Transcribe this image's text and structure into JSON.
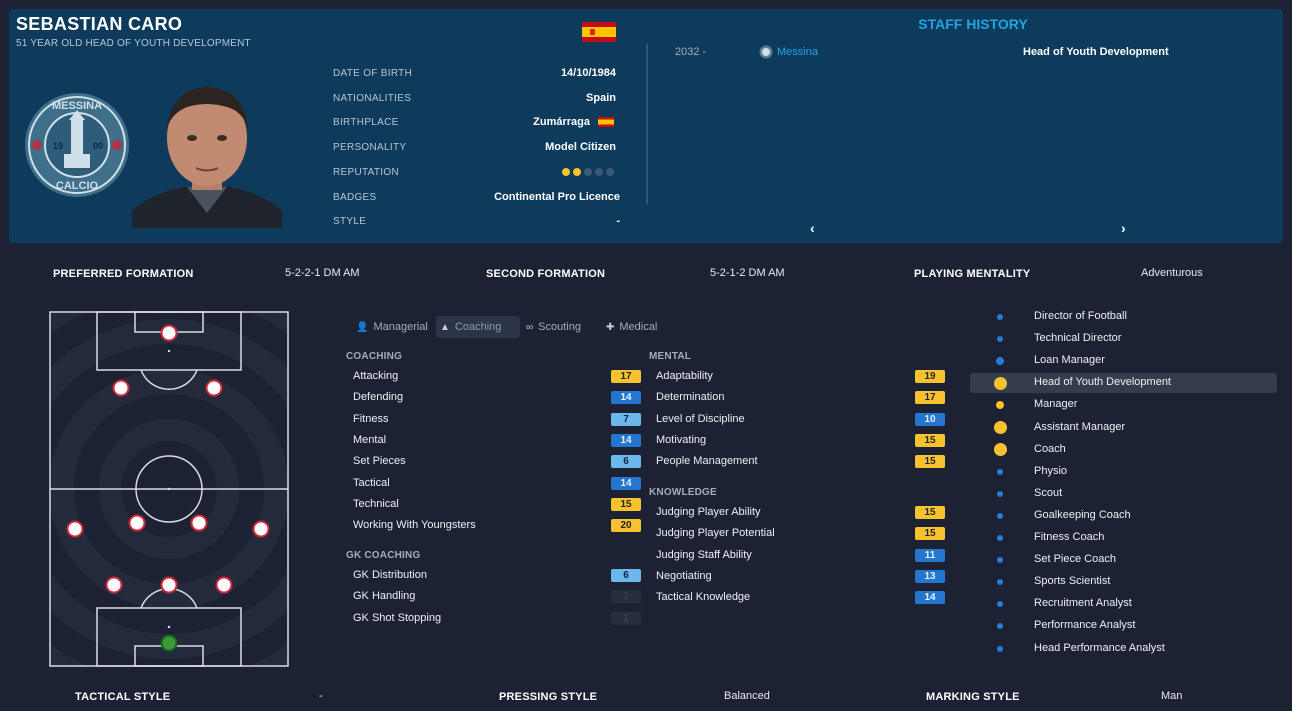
{
  "staff": {
    "name": "SEBASTIAN CARO",
    "subtitle": "51 YEAR OLD HEAD OF YOUTH DEVELOPMENT",
    "details": [
      {
        "label": "DATE OF BIRTH",
        "value": "14/10/1984"
      },
      {
        "label": "NATIONALITIES",
        "value": "Spain"
      },
      {
        "label": "BIRTHPLACE",
        "value": "Zumárraga"
      },
      {
        "label": "PERSONALITY",
        "value": "Model Citizen"
      },
      {
        "label": "REPUTATION",
        "value": ""
      },
      {
        "label": "BADGES",
        "value": "Continental Pro Licence"
      },
      {
        "label": "STYLE",
        "value": "-"
      }
    ],
    "reputation_stars": 2,
    "reputation_max": 5
  },
  "club_badge": {
    "text_top": "MESSINA",
    "text_bottom": "CALCIO",
    "year_left": "19",
    "year_right": "00"
  },
  "staff_history": {
    "title": "STAFF HISTORY",
    "rows": [
      {
        "year": "2032 -",
        "club": "Messina",
        "role": "Head of Youth Development"
      }
    ],
    "prev_icon": "chevron-left-icon",
    "next_icon": "chevron-right-icon",
    "prev_label": "‹",
    "next_label": "›"
  },
  "formations": {
    "preferred_label": "PREFERRED FORMATION",
    "preferred_value": "5-2-2-1 DM AM",
    "second_label": "SECOND FORMATION",
    "second_value": "5-2-1-2 DM AM",
    "mentality_label": "PLAYING MENTALITY",
    "mentality_value": "Adventurous"
  },
  "tabs": [
    {
      "label": "Managerial",
      "icon": "person-icon",
      "active": false
    },
    {
      "label": "Coaching",
      "icon": "coach-icon",
      "active": true
    },
    {
      "label": "Scouting",
      "icon": "binoculars-icon",
      "active": false
    },
    {
      "label": "Medical",
      "icon": "medical-kit-icon",
      "active": false
    }
  ],
  "attributes": {
    "coaching": {
      "title": "COACHING",
      "items": [
        {
          "name": "Attacking",
          "value": "17",
          "tone": "y"
        },
        {
          "name": "Defending",
          "value": "14",
          "tone": "b"
        },
        {
          "name": "Fitness",
          "value": "7",
          "tone": "lb"
        },
        {
          "name": "Mental",
          "value": "14",
          "tone": "b"
        },
        {
          "name": "Set Pieces",
          "value": "6",
          "tone": "lb"
        },
        {
          "name": "Tactical",
          "value": "14",
          "tone": "b"
        },
        {
          "name": "Technical",
          "value": "15",
          "tone": "y"
        },
        {
          "name": "Working With Youngsters",
          "value": "20",
          "tone": "y"
        }
      ]
    },
    "gk_coaching": {
      "title": "GK COACHING",
      "items": [
        {
          "name": "GK Distribution",
          "value": "6",
          "tone": "lb"
        },
        {
          "name": "GK Handling",
          "value": "1",
          "tone": "g"
        },
        {
          "name": "GK Shot Stopping",
          "value": "1",
          "tone": "g"
        }
      ]
    },
    "mental": {
      "title": "MENTAL",
      "items": [
        {
          "name": "Adaptability",
          "value": "19",
          "tone": "y"
        },
        {
          "name": "Determination",
          "value": "17",
          "tone": "y"
        },
        {
          "name": "Level of Discipline",
          "value": "10",
          "tone": "b"
        },
        {
          "name": "Motivating",
          "value": "15",
          "tone": "y"
        },
        {
          "name": "People Management",
          "value": "15",
          "tone": "y"
        }
      ]
    },
    "knowledge": {
      "title": "KNOWLEDGE",
      "items": [
        {
          "name": "Judging Player Ability",
          "value": "15",
          "tone": "y"
        },
        {
          "name": "Judging Player Potential",
          "value": "15",
          "tone": "y"
        },
        {
          "name": "Judging Staff Ability",
          "value": "11",
          "tone": "b"
        },
        {
          "name": "Negotiating",
          "value": "13",
          "tone": "b"
        },
        {
          "name": "Tactical Knowledge",
          "value": "14",
          "tone": "b"
        }
      ]
    }
  },
  "roles": [
    {
      "name": "Director of Football",
      "size": "s",
      "color": "#2a7bd6"
    },
    {
      "name": "Technical Director",
      "size": "s",
      "color": "#2a7bd6"
    },
    {
      "name": "Loan Manager",
      "size": "m",
      "color": "#2a7bd6"
    },
    {
      "name": "Head of Youth Development",
      "size": "l",
      "color": "#f6c22f",
      "highlight": true
    },
    {
      "name": "Manager",
      "size": "m",
      "color": "#f6c22f"
    },
    {
      "name": "Assistant Manager",
      "size": "l",
      "color": "#f6c22f"
    },
    {
      "name": "Coach",
      "size": "l",
      "color": "#f6c22f"
    },
    {
      "name": "Physio",
      "size": "s",
      "color": "#2a7bd6"
    },
    {
      "name": "Scout",
      "size": "s",
      "color": "#2a7bd6"
    },
    {
      "name": "Goalkeeping Coach",
      "size": "s",
      "color": "#2a7bd6"
    },
    {
      "name": "Fitness Coach",
      "size": "s",
      "color": "#2a7bd6"
    },
    {
      "name": "Set Piece Coach",
      "size": "s",
      "color": "#2a7bd6"
    },
    {
      "name": "Sports Scientist",
      "size": "s",
      "color": "#2a7bd6"
    },
    {
      "name": "Recruitment Analyst",
      "size": "s",
      "color": "#2a7bd6"
    },
    {
      "name": "Performance Analyst",
      "size": "s",
      "color": "#2a7bd6"
    },
    {
      "name": "Head Performance Analyst",
      "size": "s",
      "color": "#2a7bd6"
    }
  ],
  "styles": {
    "tactical_label": "TACTICAL STYLE",
    "tactical_value": "-",
    "pressing_label": "PRESSING STYLE",
    "pressing_value": "Balanced",
    "marking_label": "MARKING STYLE",
    "marking_value": "Man"
  },
  "colors": {
    "header_bg": "#0e3a5c",
    "page_bg": "#1c2233",
    "accent": "#1fa6e6",
    "gold": "#f6c22f",
    "blue": "#2476cf"
  }
}
